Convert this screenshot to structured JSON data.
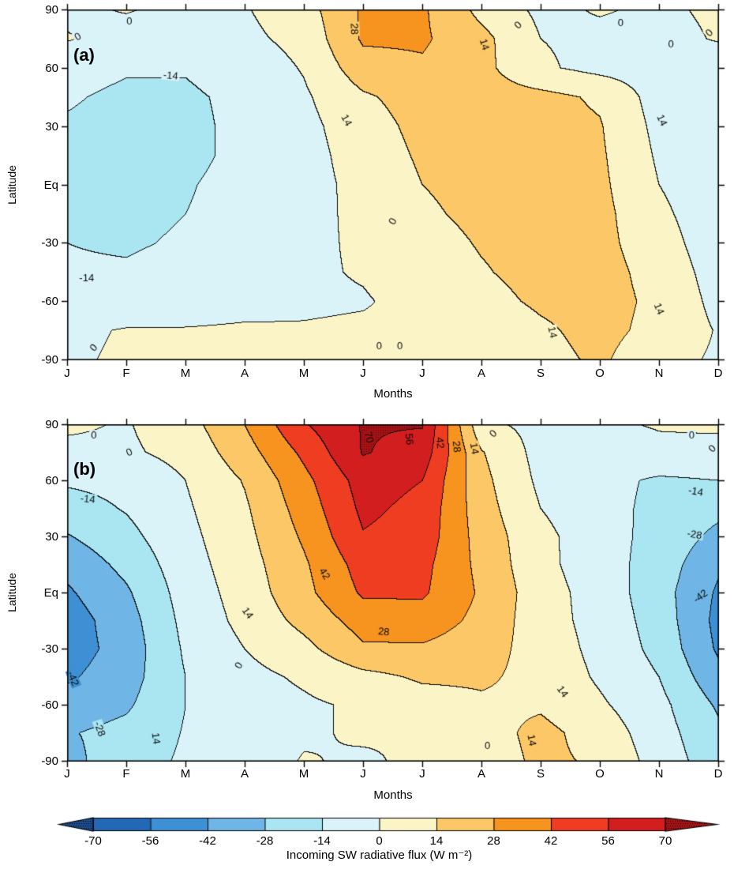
{
  "levels": [
    -70,
    -56,
    -42,
    -28,
    -14,
    0,
    14,
    28,
    42,
    56,
    70
  ],
  "palette": {
    "band_colors": [
      "#1c4c8e",
      "#2368b4",
      "#3e8fd4",
      "#6fb5e6",
      "#a9e6f2",
      "#daf3f8",
      "#fbf4c6",
      "#fcc766",
      "#f79420",
      "#ee3d21",
      "#d31e1f",
      "#a51216"
    ],
    "contour_line": "#0a0a0a",
    "background": "#ffffff"
  },
  "chart_data": [
    {
      "type": "contour",
      "title": "(a)",
      "xlabel": "Months",
      "ylabel": "Latitude",
      "x_ticklabels": [
        "J",
        "F",
        "M",
        "A",
        "M",
        "J",
        "J",
        "A",
        "S",
        "O",
        "N",
        "D"
      ],
      "y_ticks": [
        {
          "v": 90,
          "label": "90"
        },
        {
          "v": 60,
          "label": "60"
        },
        {
          "v": 30,
          "label": "30"
        },
        {
          "v": 0,
          "label": "Eq"
        },
        {
          "v": -30,
          "label": "-30"
        },
        {
          "v": -60,
          "label": "-60"
        },
        {
          "v": -90,
          "label": "-90"
        }
      ],
      "ylim": [
        -90,
        90
      ],
      "lat_rows": [
        90,
        75,
        60,
        45,
        30,
        15,
        0,
        -15,
        -30,
        -45,
        -60,
        -75,
        -90
      ],
      "values": [
        [
          -3,
          1,
          -4,
          -1,
          8,
          30,
          30,
          10,
          -3,
          1,
          -2,
          2
        ],
        [
          1,
          -6,
          -7,
          -3,
          4,
          30,
          30,
          18,
          0,
          -3,
          -4,
          1
        ],
        [
          -10,
          -13,
          -13,
          -8,
          1,
          22,
          26,
          18,
          2,
          -4,
          -6,
          -8
        ],
        [
          -13,
          -16,
          -16,
          -11,
          -2,
          12,
          20,
          20,
          18,
          12,
          -6,
          -10
        ],
        [
          -15,
          -17,
          -17,
          -11,
          -4,
          8,
          18,
          20,
          19,
          15,
          -4,
          -11
        ],
        [
          -15,
          -17,
          -17,
          -11,
          -5,
          6,
          16,
          19,
          19,
          16,
          -2,
          -11
        ],
        [
          -15,
          -17,
          -15,
          -10,
          -5,
          4,
          14,
          18,
          19,
          17,
          0,
          -10
        ],
        [
          -15,
          -16,
          -14,
          -10,
          -4,
          3,
          12,
          17,
          19,
          18,
          3,
          -9
        ],
        [
          -14,
          -15,
          -13,
          -8,
          -3,
          2,
          9,
          15,
          18,
          18,
          6,
          -8
        ],
        [
          -13,
          -13,
          -11,
          -7,
          -2,
          1,
          7,
          13,
          18,
          19,
          9,
          -6
        ],
        [
          -9,
          -10,
          -8,
          -5,
          -2,
          -1,
          4,
          10,
          16,
          19,
          11,
          -4
        ],
        [
          -3,
          1,
          1,
          2,
          1,
          2,
          3,
          5,
          12,
          18,
          10,
          -1
        ],
        [
          -2,
          2,
          3,
          3,
          2,
          5,
          5,
          4,
          10,
          16,
          5,
          -2
        ]
      ],
      "contour_labels": [
        {
          "t": "0",
          "m": 1.05,
          "lat": 84,
          "rot": 0
        },
        {
          "t": "0",
          "m": 0.18,
          "lat": 76,
          "rot": -30
        },
        {
          "t": "-14",
          "m": 1.75,
          "lat": 56,
          "rot": 6
        },
        {
          "t": "28",
          "m": 4.85,
          "lat": 80,
          "rot": 88
        },
        {
          "t": "14",
          "m": 4.72,
          "lat": 33,
          "rot": 62
        },
        {
          "t": "14",
          "m": 7.05,
          "lat": 72,
          "rot": 72
        },
        {
          "t": "0",
          "m": 7.62,
          "lat": 82,
          "rot": -45
        },
        {
          "t": "0",
          "m": 9.35,
          "lat": 83,
          "rot": 0
        },
        {
          "t": "0",
          "m": 10.2,
          "lat": 72,
          "rot": 0
        },
        {
          "t": "0",
          "m": 10.85,
          "lat": 78,
          "rot": -45
        },
        {
          "t": "0",
          "m": 5.5,
          "lat": -19,
          "rot": -62
        },
        {
          "t": "-14",
          "m": 0.33,
          "lat": -48,
          "rot": 0
        },
        {
          "t": "0",
          "m": 0.45,
          "lat": -84,
          "rot": -50
        },
        {
          "t": "0",
          "m": 5.27,
          "lat": -83,
          "rot": 0
        },
        {
          "t": "0",
          "m": 5.62,
          "lat": -83,
          "rot": 0
        },
        {
          "t": "14",
          "m": 8.2,
          "lat": -76,
          "rot": 78
        },
        {
          "t": "14",
          "m": 10.05,
          "lat": 33,
          "rot": 65
        },
        {
          "t": "14",
          "m": 10.0,
          "lat": -64,
          "rot": 68
        }
      ]
    },
    {
      "type": "contour",
      "title": "(b)",
      "xlabel": "Months",
      "ylabel": "Latitude",
      "x_ticklabels": [
        "J",
        "F",
        "M",
        "A",
        "M",
        "J",
        "J",
        "A",
        "S",
        "O",
        "N",
        "D"
      ],
      "y_ticks": [
        {
          "v": 90,
          "label": "90"
        },
        {
          "v": 60,
          "label": "60"
        },
        {
          "v": 30,
          "label": "30"
        },
        {
          "v": 0,
          "label": "Eq"
        },
        {
          "v": -30,
          "label": "-30"
        },
        {
          "v": -60,
          "label": "-60"
        },
        {
          "v": -90,
          "label": "-90"
        }
      ],
      "ylim": [
        -90,
        90
      ],
      "lat_rows": [
        90,
        75,
        60,
        45,
        30,
        15,
        0,
        -15,
        -30,
        -45,
        -60,
        -75,
        -90
      ],
      "values": [
        [
          2,
          -1,
          8,
          28,
          55,
          71,
          71,
          3,
          -4,
          -2,
          1,
          2
        ],
        [
          -3,
          -2,
          4,
          22,
          45,
          71,
          64,
          15,
          -5,
          -7,
          -3,
          -4
        ],
        [
          -12,
          -10,
          0,
          15,
          38,
          62,
          56,
          18,
          -3,
          -10,
          -16,
          -14
        ],
        [
          -20,
          -13,
          -2,
          12,
          34,
          59,
          52,
          20,
          0,
          -10,
          -17,
          -24
        ],
        [
          -29,
          -18,
          -4,
          10,
          30,
          55,
          50,
          22,
          4,
          -9,
          -18,
          -32
        ],
        [
          -38,
          -24,
          -6,
          8,
          26,
          48,
          46,
          24,
          4,
          -8,
          -20,
          -40
        ],
        [
          -44,
          -30,
          -8,
          6,
          24,
          44,
          44,
          26,
          6,
          -6,
          -22,
          -44
        ],
        [
          -49,
          -34,
          -10,
          4,
          18,
          34,
          36,
          24,
          6,
          -5,
          -20,
          -46
        ],
        [
          -49,
          -36,
          -12,
          0,
          10,
          26,
          26,
          20,
          8,
          -4,
          -18,
          -44
        ],
        [
          -44,
          -34,
          -14,
          -4,
          2,
          10,
          16,
          16,
          10,
          -2,
          -14,
          -38
        ],
        [
          -36,
          -30,
          -14,
          -6,
          -2,
          2,
          8,
          12,
          12,
          2,
          -10,
          -30
        ],
        [
          -29,
          -24,
          -13,
          -7,
          -2,
          2,
          0,
          8,
          18,
          8,
          -8,
          -25
        ],
        [
          -32,
          -20,
          -12,
          -8,
          1,
          -2,
          3,
          6,
          17,
          12,
          -6,
          -22
        ]
      ],
      "contour_labels": [
        {
          "t": "0",
          "m": 0.45,
          "lat": 84,
          "rot": 0
        },
        {
          "t": "0",
          "m": 1.05,
          "lat": 75,
          "rot": -25
        },
        {
          "t": "-14",
          "m": 0.35,
          "lat": 50,
          "rot": 6
        },
        {
          "t": "-42",
          "m": 0.1,
          "lat": -46,
          "rot": 68
        },
        {
          "t": "-28",
          "m": 0.55,
          "lat": -73,
          "rot": 70
        },
        {
          "t": "14",
          "m": 1.5,
          "lat": -78,
          "rot": 82
        },
        {
          "t": "14",
          "m": 3.05,
          "lat": -11,
          "rot": 55
        },
        {
          "t": "0",
          "m": 2.9,
          "lat": -39,
          "rot": -60
        },
        {
          "t": "42",
          "m": 4.35,
          "lat": 10,
          "rot": 58
        },
        {
          "t": "28",
          "m": 5.35,
          "lat": -21,
          "rot": 6
        },
        {
          "t": "70",
          "m": 5.1,
          "lat": 83,
          "rot": 75
        },
        {
          "t": "56",
          "m": 5.78,
          "lat": 82,
          "rot": 85
        },
        {
          "t": "42",
          "m": 6.3,
          "lat": 80,
          "rot": 85
        },
        {
          "t": "28",
          "m": 6.58,
          "lat": 78,
          "rot": 85
        },
        {
          "t": "14",
          "m": 6.88,
          "lat": 77,
          "rot": 80
        },
        {
          "t": "0",
          "m": 7.2,
          "lat": 85,
          "rot": -45
        },
        {
          "t": "0",
          "m": 10.55,
          "lat": 84,
          "rot": 0
        },
        {
          "t": "0",
          "m": 10.9,
          "lat": 77,
          "rot": -45
        },
        {
          "t": "-14",
          "m": 10.62,
          "lat": 54,
          "rot": 10
        },
        {
          "t": "-28",
          "m": 10.6,
          "lat": 31,
          "rot": 10
        },
        {
          "t": "-42",
          "m": 10.7,
          "lat": -2,
          "rot": -35
        },
        {
          "t": "14",
          "m": 8.37,
          "lat": -53,
          "rot": 55
        },
        {
          "t": "14",
          "m": 7.85,
          "lat": -79,
          "rot": 80
        },
        {
          "t": "0",
          "m": 7.1,
          "lat": -82,
          "rot": 0
        }
      ]
    }
  ],
  "colorbar": {
    "tick_labels": [
      "-70",
      "-56",
      "-42",
      "-28",
      "-14",
      "0",
      "14",
      "28",
      "42",
      "56",
      "70"
    ],
    "title": "Incoming SW radiative flux (W m⁻²)",
    "low_arrow": true,
    "high_arrow": true
  }
}
